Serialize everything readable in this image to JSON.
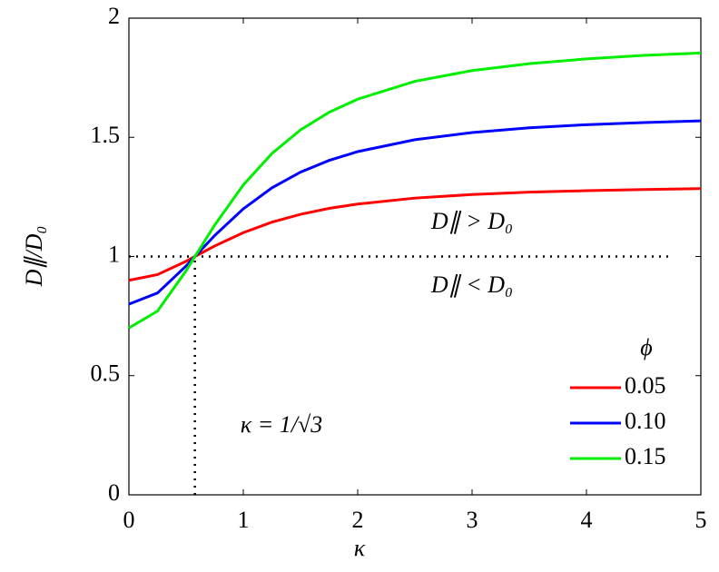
{
  "chart_data": {
    "type": "line",
    "x_label": "κ",
    "y_label": "D∥/D₀",
    "x": [
      0,
      0.25,
      0.5,
      0.577,
      0.75,
      1,
      1.25,
      1.5,
      1.75,
      2,
      2.5,
      3,
      3.5,
      4,
      4.5,
      5
    ],
    "series": [
      {
        "name": "0.05",
        "color": "#ff0000",
        "values": [
          0.9,
          0.924,
          0.98,
          1,
          1.044,
          1.1,
          1.144,
          1.177,
          1.202,
          1.22,
          1.245,
          1.26,
          1.27,
          1.276,
          1.281,
          1.285
        ]
      },
      {
        "name": "0.10",
        "color": "#0000ff",
        "values": [
          0.8,
          0.847,
          0.96,
          1,
          1.088,
          1.2,
          1.288,
          1.354,
          1.403,
          1.44,
          1.49,
          1.52,
          1.54,
          1.553,
          1.562,
          1.569
        ]
      },
      {
        "name": "0.15",
        "color": "#00ee00",
        "values": [
          0.7,
          0.771,
          0.94,
          1,
          1.132,
          1.3,
          1.432,
          1.531,
          1.605,
          1.66,
          1.735,
          1.78,
          1.809,
          1.829,
          1.844,
          1.854
        ]
      }
    ],
    "legend_title": "ϕ",
    "xlim": [
      0,
      5
    ],
    "xticks": [
      0,
      1,
      2,
      3,
      4,
      5
    ],
    "ylim": [
      0,
      2
    ],
    "yticks": [
      0,
      0.5,
      1,
      1.5,
      2
    ],
    "hline": 1,
    "vline": 0.577,
    "annotations": [
      "D∥ > D₀",
      "D∥ < D₀",
      "κ = 1/√3"
    ],
    "legend_position": "lower right"
  }
}
